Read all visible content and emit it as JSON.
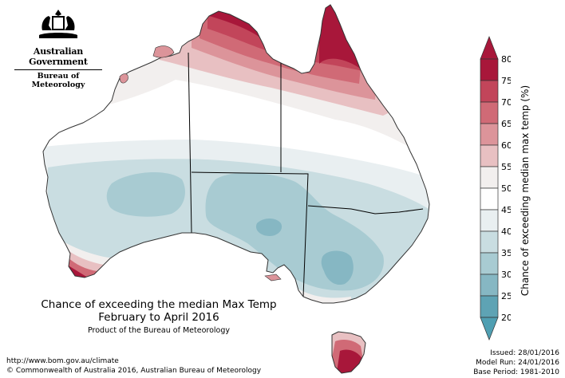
{
  "header": {
    "org_line1": "Australian Government",
    "org_line2": "Bureau of Meteorology"
  },
  "title": {
    "line1": "Chance of exceeding the median Max Temp",
    "line2": "February to April 2016",
    "credit": "Product of the Bureau of Meteorology"
  },
  "footer": {
    "url": "http://www.bom.gov.au/climate",
    "copyright": "© Commonwealth of Australia 2016, Australian Bureau of Meteorology",
    "issued": "Issued: 28/01/2016",
    "model_run": "Model Run: 24/01/2016",
    "base_period": "Base Period: 1981-2010"
  },
  "legend": {
    "title": "Chance of exceeding median max temp (%)",
    "ticks": [
      "80",
      "75",
      "70",
      "65",
      "60",
      "55",
      "50",
      "45",
      "40",
      "35",
      "30",
      "25",
      "20"
    ],
    "colors": [
      "#a8173a",
      "#c2455a",
      "#d06a76",
      "#dc949a",
      "#e8c0c2",
      "#f2efee",
      "#ffffff",
      "#e9eff1",
      "#c9dde1",
      "#a8cbd2",
      "#86b7c3",
      "#5ea3b4"
    ]
  }
}
